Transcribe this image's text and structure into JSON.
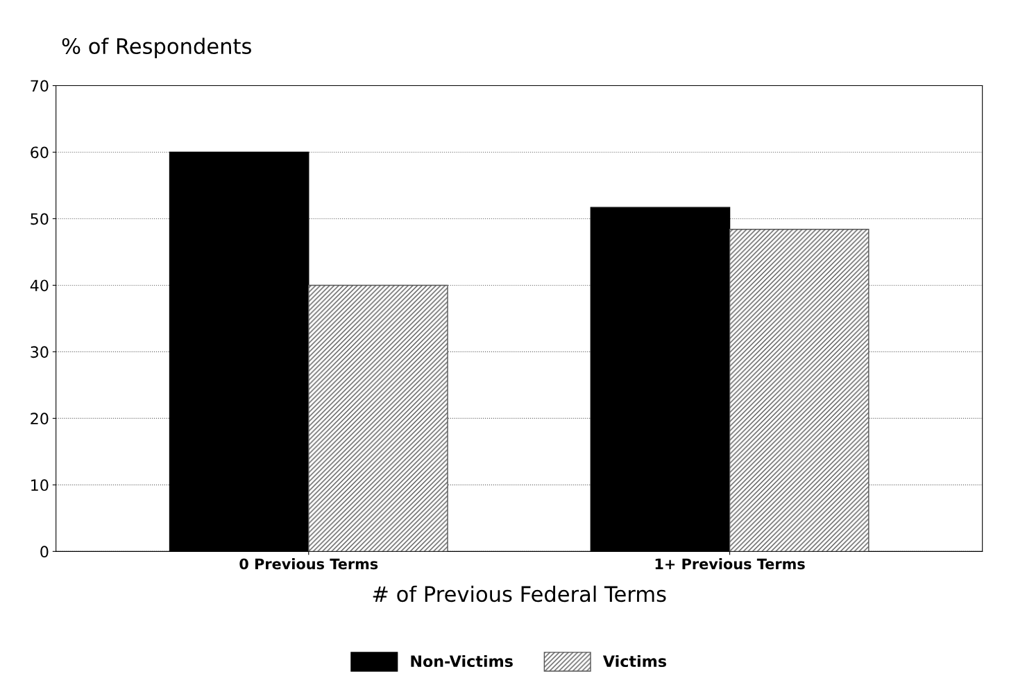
{
  "chart_data": {
    "type": "bar",
    "ylabel": "% of Respondents",
    "xlabel": "# of Previous Federal Terms",
    "categories": [
      "0 Previous Terms",
      "1+ Previous Terms"
    ],
    "series": [
      {
        "name": "Non-Victims",
        "color": "#000000",
        "values": [
          60,
          51.7
        ]
      },
      {
        "name": "Victims",
        "color": "#555555",
        "values": [
          40,
          48.4
        ]
      }
    ],
    "ylim": [
      0,
      70
    ],
    "yticks": [
      0,
      10,
      20,
      30,
      40,
      50,
      60,
      70
    ],
    "grid": "y",
    "legend": "bottom"
  }
}
